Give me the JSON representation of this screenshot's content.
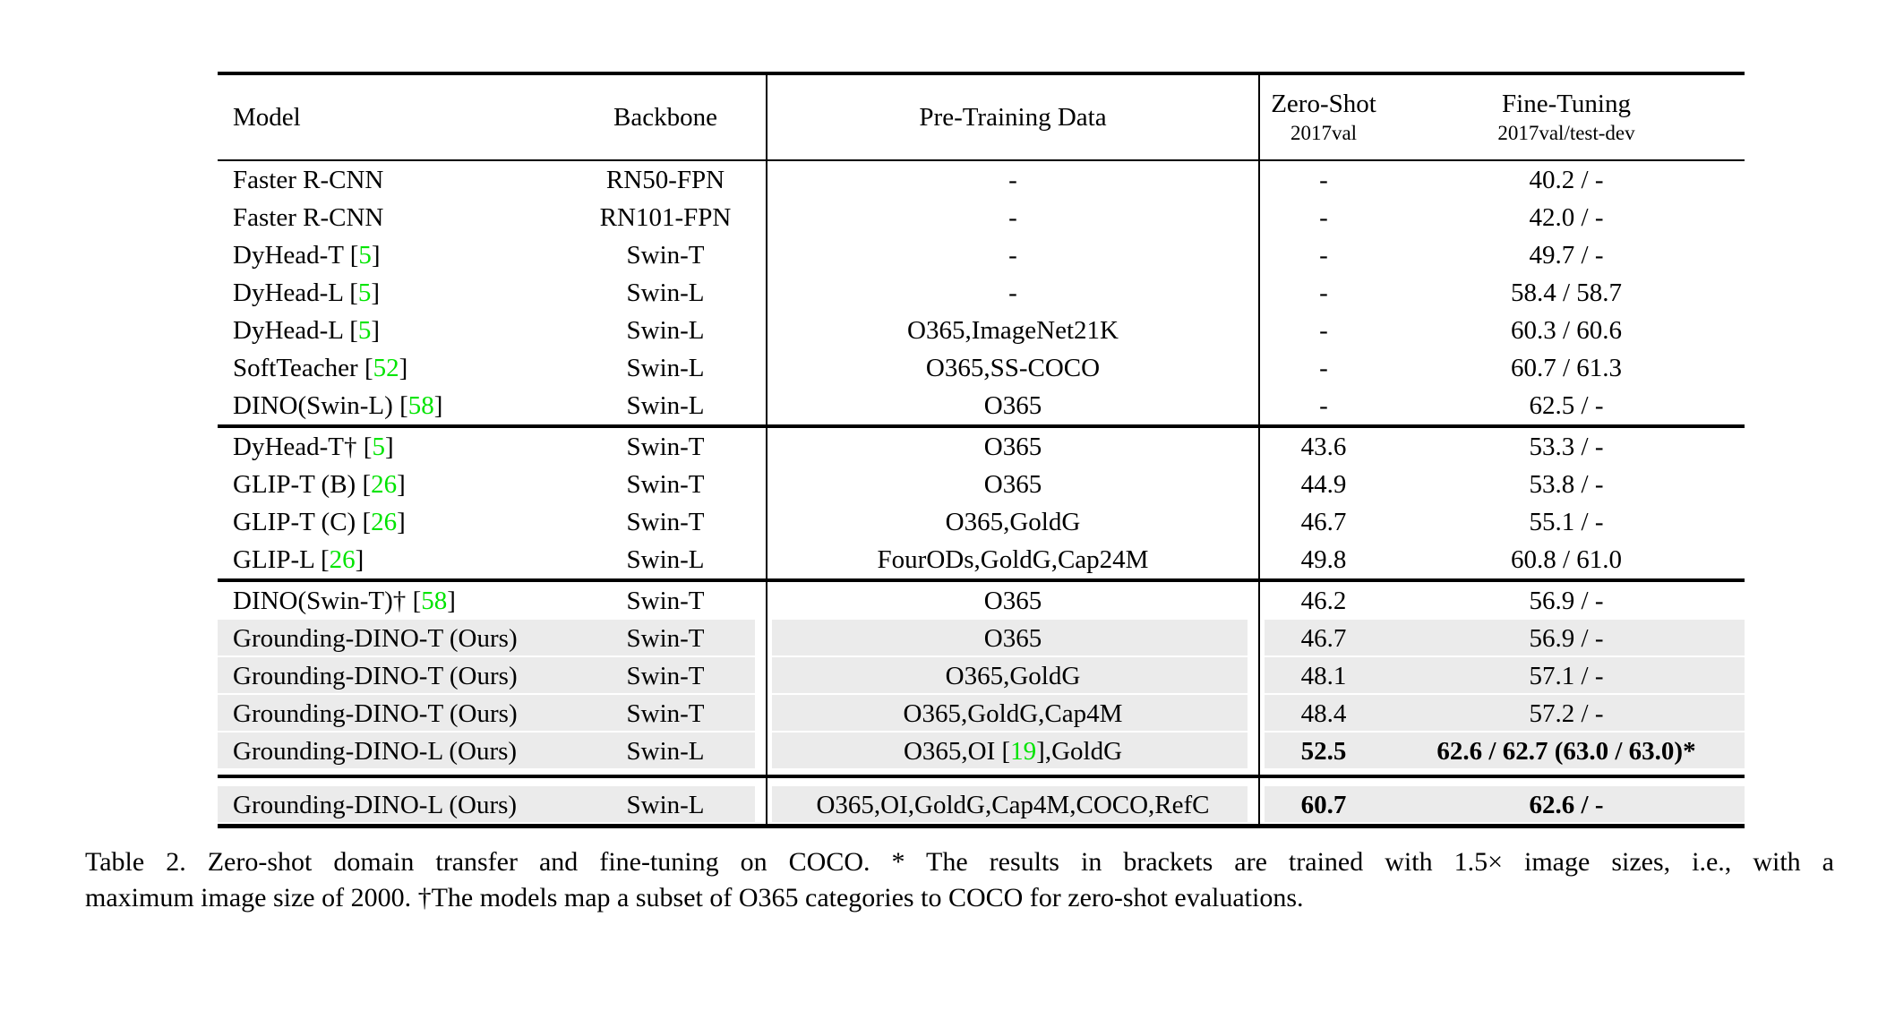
{
  "colors": {
    "citation_green": "#00e400",
    "row_highlight": "#ebebeb",
    "rule_black": "#000000"
  },
  "table": {
    "columns": [
      {
        "label": "Model"
      },
      {
        "label": "Backbone"
      },
      {
        "label": "Pre-Training Data"
      },
      {
        "label": "Zero-Shot",
        "sub": "2017val"
      },
      {
        "label": "Fine-Tuning",
        "sub": "2017val/test-dev"
      }
    ],
    "sections": [
      {
        "rows": [
          {
            "model": [
              {
                "t": "Faster R-CNN"
              }
            ],
            "backbone": "RN50-FPN",
            "pretrain": [
              {
                "t": "-"
              }
            ],
            "zeroshot": "-",
            "finetune": "40.2 / -"
          },
          {
            "model": [
              {
                "t": "Faster R-CNN"
              }
            ],
            "backbone": "RN101-FPN",
            "pretrain": [
              {
                "t": "-"
              }
            ],
            "zeroshot": "-",
            "finetune": "42.0 / -"
          },
          {
            "model": [
              {
                "t": "DyHead-T "
              },
              {
                "cite": "5"
              }
            ],
            "backbone": "Swin-T",
            "pretrain": [
              {
                "t": "-"
              }
            ],
            "zeroshot": "-",
            "finetune": "49.7 / -"
          },
          {
            "model": [
              {
                "t": "DyHead-L "
              },
              {
                "cite": "5"
              }
            ],
            "backbone": "Swin-L",
            "pretrain": [
              {
                "t": "-"
              }
            ],
            "zeroshot": "-",
            "finetune": "58.4 / 58.7"
          },
          {
            "model": [
              {
                "t": "DyHead-L "
              },
              {
                "cite": "5"
              }
            ],
            "backbone": "Swin-L",
            "pretrain": [
              {
                "t": "O365,ImageNet21K"
              }
            ],
            "zeroshot": "-",
            "finetune": "60.3 / 60.6"
          },
          {
            "model": [
              {
                "t": "SoftTeacher "
              },
              {
                "cite": "52"
              }
            ],
            "backbone": "Swin-L",
            "pretrain": [
              {
                "t": "O365,SS-COCO"
              }
            ],
            "zeroshot": "-",
            "finetune": "60.7 / 61.3"
          },
          {
            "model": [
              {
                "t": "DINO(Swin-L) "
              },
              {
                "cite": "58"
              }
            ],
            "backbone": "Swin-L",
            "pretrain": [
              {
                "t": "O365"
              }
            ],
            "zeroshot": "-",
            "finetune": "62.5 / -"
          }
        ]
      },
      {
        "rows": [
          {
            "model": [
              {
                "t": "DyHead-T† "
              },
              {
                "cite": "5"
              }
            ],
            "backbone": "Swin-T",
            "pretrain": [
              {
                "t": "O365"
              }
            ],
            "zeroshot": "43.6",
            "finetune": "53.3 / -"
          },
          {
            "model": [
              {
                "t": "GLIP-T (B) "
              },
              {
                "cite": "26"
              }
            ],
            "backbone": "Swin-T",
            "pretrain": [
              {
                "t": "O365"
              }
            ],
            "zeroshot": "44.9",
            "finetune": "53.8 / -"
          },
          {
            "model": [
              {
                "t": "GLIP-T (C) "
              },
              {
                "cite": "26"
              }
            ],
            "backbone": "Swin-T",
            "pretrain": [
              {
                "t": "O365,GoldG"
              }
            ],
            "zeroshot": "46.7",
            "finetune": "55.1 / -"
          },
          {
            "model": [
              {
                "t": "GLIP-L "
              },
              {
                "cite": "26"
              }
            ],
            "backbone": "Swin-L",
            "pretrain": [
              {
                "t": "FourODs,GoldG,Cap24M"
              }
            ],
            "zeroshot": "49.8",
            "finetune": "60.8 / 61.0"
          }
        ]
      },
      {
        "rows": [
          {
            "model": [
              {
                "t": "DINO(Swin-T)† "
              },
              {
                "cite": "58"
              }
            ],
            "backbone": "Swin-T",
            "pretrain": [
              {
                "t": "O365"
              }
            ],
            "zeroshot": "46.2",
            "finetune": "56.9 / -"
          },
          {
            "hl": true,
            "model": [
              {
                "t": "Grounding-DINO-T (Ours)"
              }
            ],
            "backbone": "Swin-T",
            "pretrain": [
              {
                "t": "O365"
              }
            ],
            "zeroshot": "46.7",
            "finetune": "56.9 / -"
          },
          {
            "hl": true,
            "model": [
              {
                "t": "Grounding-DINO-T (Ours)"
              }
            ],
            "backbone": "Swin-T",
            "pretrain": [
              {
                "t": "O365,GoldG"
              }
            ],
            "zeroshot": "48.1",
            "finetune": "57.1 / -"
          },
          {
            "hl": true,
            "model": [
              {
                "t": "Grounding-DINO-T (Ours)"
              }
            ],
            "backbone": "Swin-T",
            "pretrain": [
              {
                "t": "O365,GoldG,Cap4M"
              }
            ],
            "zeroshot": "48.4",
            "finetune": "57.2 / -"
          },
          {
            "hl": true,
            "bold": true,
            "model": [
              {
                "t": "Grounding-DINO-L (Ours)"
              }
            ],
            "backbone": "Swin-L",
            "pretrain": [
              {
                "t": "O365,OI "
              },
              {
                "cite": "19"
              },
              {
                "t": ",GoldG"
              }
            ],
            "zeroshot": "52.5",
            "finetune": "62.6 / 62.7 (63.0 / 63.0)*"
          }
        ]
      },
      {
        "rows": [
          {
            "hl": true,
            "bold": true,
            "model": [
              {
                "t": "Grounding-DINO-L (Ours)"
              }
            ],
            "backbone": "Swin-L",
            "pretrain": [
              {
                "t": "O365,OI,GoldG,Cap4M,COCO,RefC"
              }
            ],
            "zeroshot": "60.7",
            "finetune": "62.6 / -"
          }
        ]
      }
    ]
  },
  "caption": {
    "line1": "Table 2.  Zero-shot domain transfer and fine-tuning on COCO. * The results in brackets are trained with 1.5× image sizes, i.e., with a",
    "line2": "maximum image size of 2000. †The models map a subset of O365 categories to COCO for zero-shot evaluations."
  }
}
